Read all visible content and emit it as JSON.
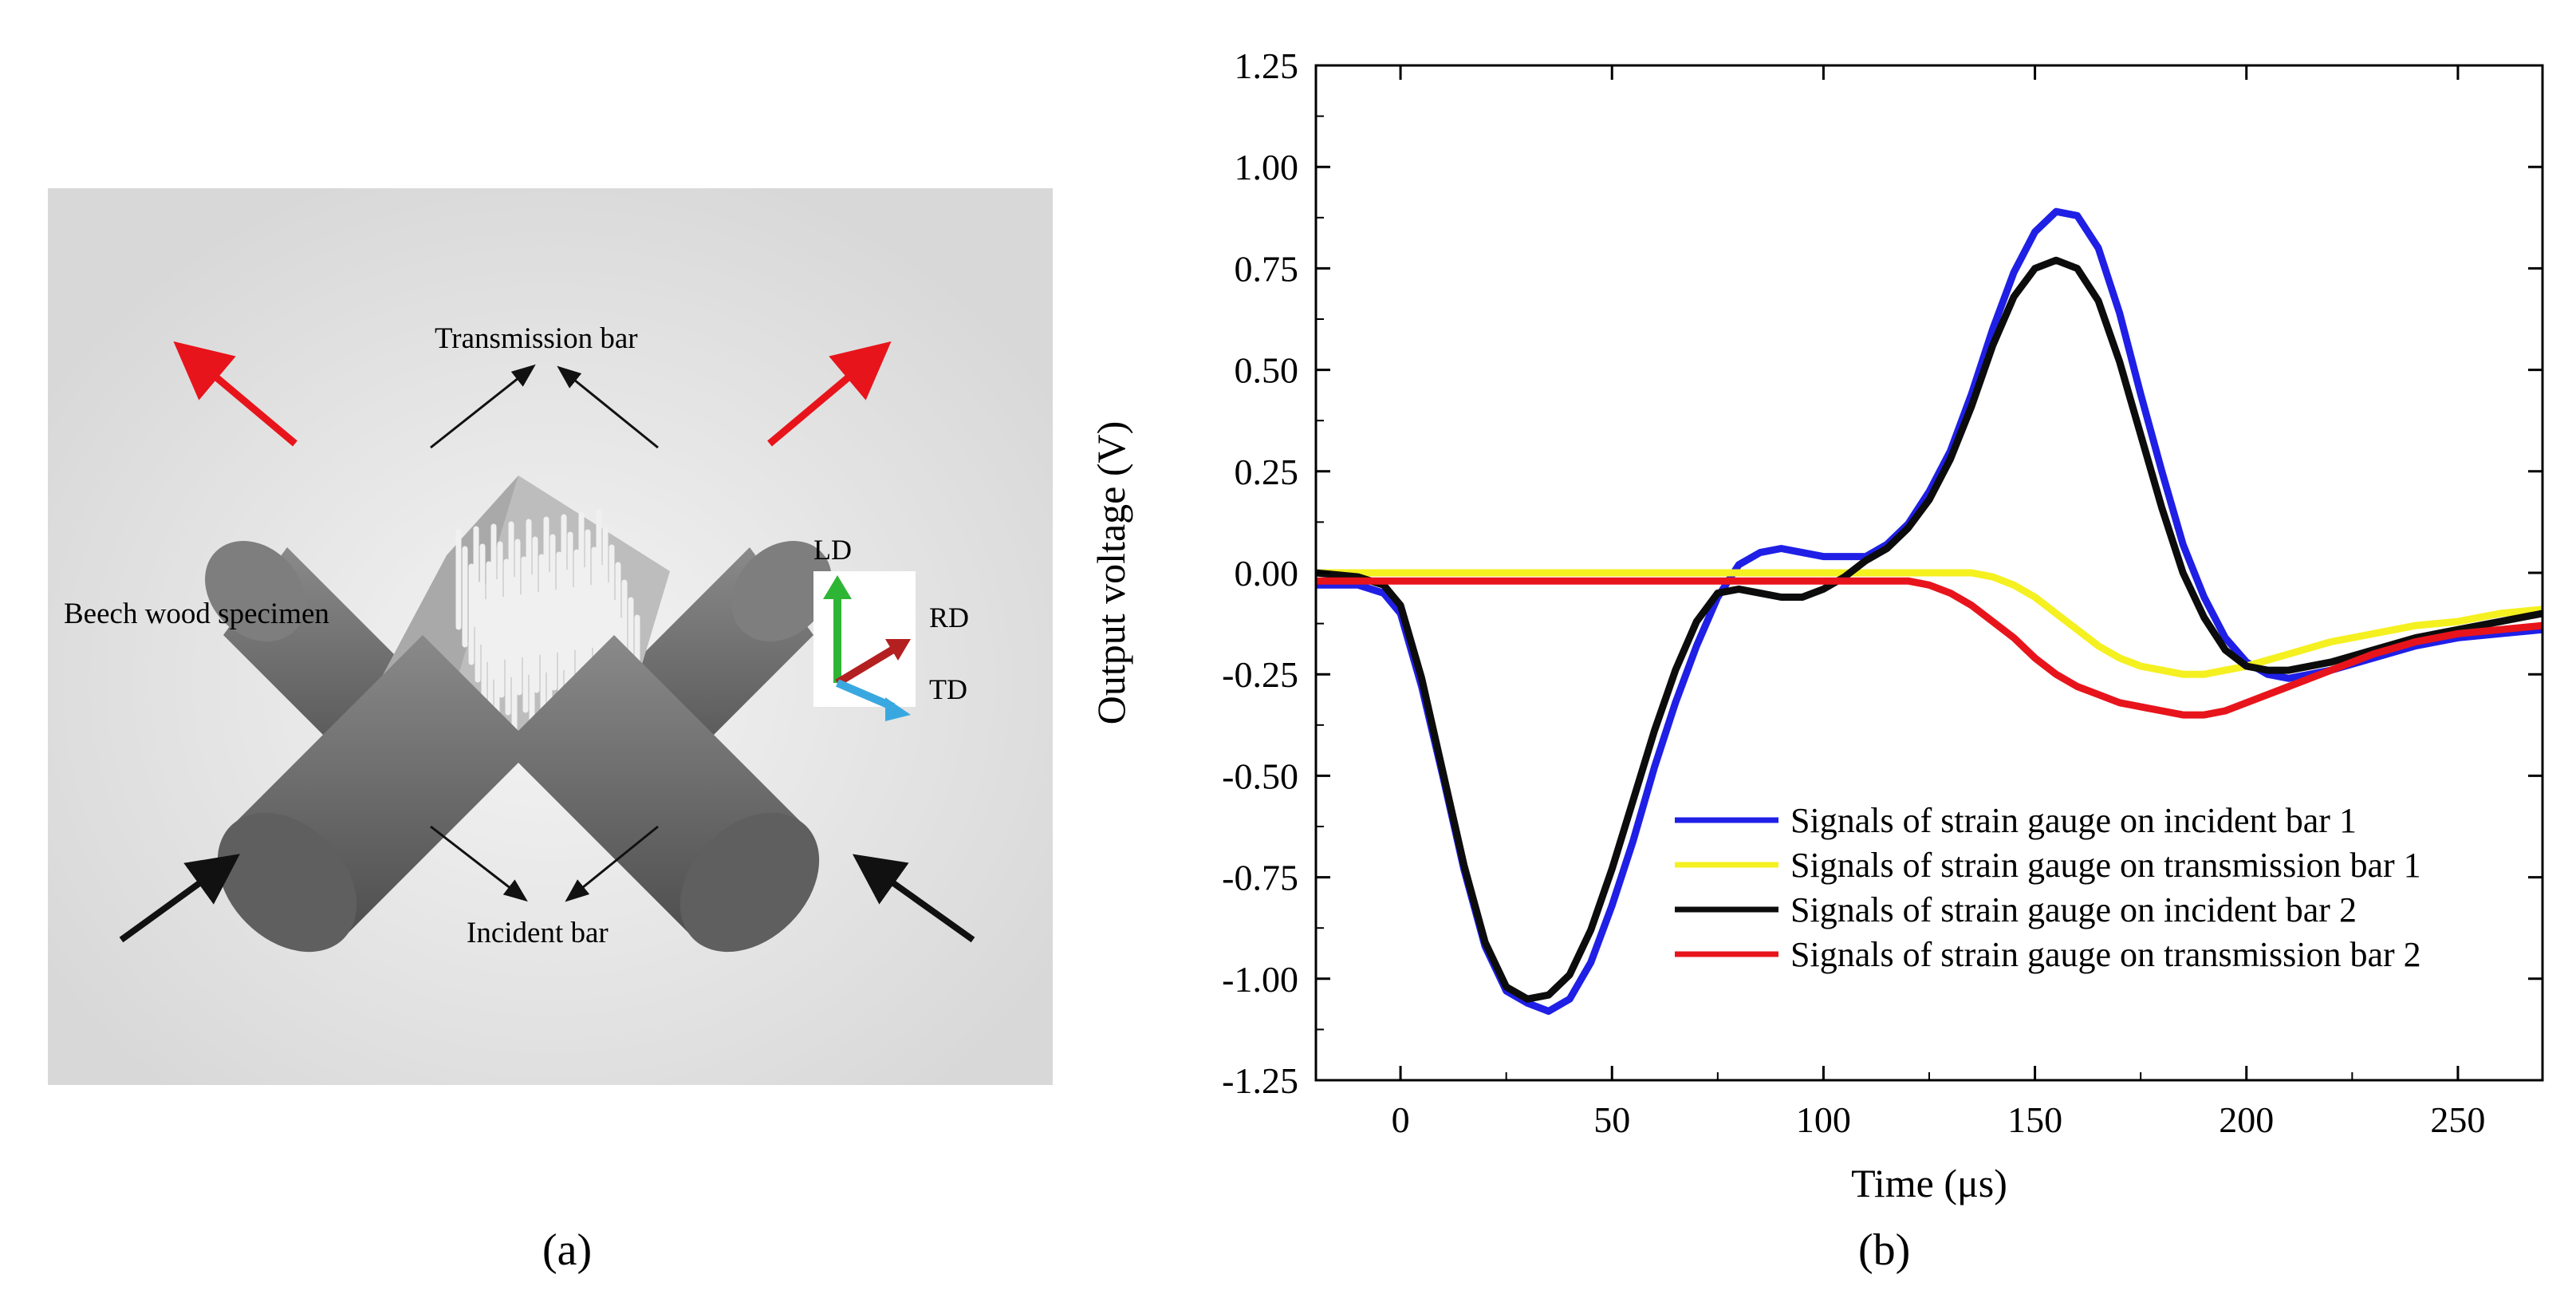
{
  "panel_a": {
    "caption": "(a)",
    "labels": {
      "transmission_bar": "Transmission bar",
      "incident_bar": "Incident bar",
      "specimen": "Beech wood specimen",
      "axis_ld": "LD",
      "axis_rd": "RD",
      "axis_td": "TD"
    },
    "colors": {
      "background": "#e2e2e2",
      "bar": "#6f6f6f",
      "arrow_out": "#e8141b",
      "arrow_in": "#111111",
      "ld": "#2fb536",
      "rd": "#b3201f",
      "td": "#3aa8e0"
    }
  },
  "panel_b": {
    "caption": "(b)"
  },
  "chart_data": {
    "type": "line",
    "xlabel": "Time (μs)",
    "ylabel": "Output voltage (V)",
    "xlim": [
      -20,
      270
    ],
    "ylim": [
      -1.25,
      1.25
    ],
    "xticks": [
      "0",
      "50",
      "100",
      "150",
      "200",
      "250"
    ],
    "yticks": [
      "1.25",
      "1.00",
      "0.75",
      "0.50",
      "0.25",
      "0.00",
      "-0.25",
      "-0.50",
      "-0.75",
      "-1.00",
      "-1.25"
    ],
    "legend_position": "lower-right",
    "grid": false,
    "series": [
      {
        "name": "Signals of strain gauge on incident bar 1",
        "color": "#1f1fe6",
        "points": [
          [
            -20,
            -0.03
          ],
          [
            -10,
            -0.03
          ],
          [
            -4,
            -0.05
          ],
          [
            0,
            -0.1
          ],
          [
            5,
            -0.28
          ],
          [
            10,
            -0.5
          ],
          [
            15,
            -0.73
          ],
          [
            20,
            -0.92
          ],
          [
            25,
            -1.03
          ],
          [
            30,
            -1.06
          ],
          [
            35,
            -1.08
          ],
          [
            40,
            -1.05
          ],
          [
            45,
            -0.96
          ],
          [
            50,
            -0.82
          ],
          [
            55,
            -0.66
          ],
          [
            60,
            -0.48
          ],
          [
            65,
            -0.32
          ],
          [
            70,
            -0.18
          ],
          [
            75,
            -0.06
          ],
          [
            80,
            0.02
          ],
          [
            85,
            0.05
          ],
          [
            90,
            0.06
          ],
          [
            95,
            0.05
          ],
          [
            100,
            0.04
          ],
          [
            105,
            0.04
          ],
          [
            110,
            0.04
          ],
          [
            115,
            0.07
          ],
          [
            120,
            0.12
          ],
          [
            125,
            0.2
          ],
          [
            130,
            0.3
          ],
          [
            135,
            0.44
          ],
          [
            140,
            0.6
          ],
          [
            145,
            0.74
          ],
          [
            150,
            0.84
          ],
          [
            155,
            0.89
          ],
          [
            160,
            0.88
          ],
          [
            165,
            0.8
          ],
          [
            170,
            0.64
          ],
          [
            175,
            0.44
          ],
          [
            180,
            0.25
          ],
          [
            185,
            0.07
          ],
          [
            190,
            -0.06
          ],
          [
            195,
            -0.16
          ],
          [
            200,
            -0.22
          ],
          [
            205,
            -0.25
          ],
          [
            210,
            -0.26
          ],
          [
            220,
            -0.24
          ],
          [
            230,
            -0.21
          ],
          [
            240,
            -0.18
          ],
          [
            250,
            -0.16
          ],
          [
            260,
            -0.15
          ],
          [
            270,
            -0.14
          ]
        ]
      },
      {
        "name": "Signals of strain gauge on transmission bar 1",
        "color": "#f5f020",
        "points": [
          [
            -20,
            0.0
          ],
          [
            0,
            0.0
          ],
          [
            50,
            0.0
          ],
          [
            100,
            0.0
          ],
          [
            120,
            0.0
          ],
          [
            130,
            0.0
          ],
          [
            135,
            0.0
          ],
          [
            140,
            -0.01
          ],
          [
            145,
            -0.03
          ],
          [
            150,
            -0.06
          ],
          [
            155,
            -0.1
          ],
          [
            160,
            -0.14
          ],
          [
            165,
            -0.18
          ],
          [
            170,
            -0.21
          ],
          [
            175,
            -0.23
          ],
          [
            180,
            -0.24
          ],
          [
            185,
            -0.25
          ],
          [
            190,
            -0.25
          ],
          [
            195,
            -0.24
          ],
          [
            200,
            -0.23
          ],
          [
            210,
            -0.2
          ],
          [
            220,
            -0.17
          ],
          [
            230,
            -0.15
          ],
          [
            240,
            -0.13
          ],
          [
            250,
            -0.12
          ],
          [
            260,
            -0.1
          ],
          [
            270,
            -0.09
          ]
        ]
      },
      {
        "name": "Signals of strain gauge on incident bar 2",
        "color": "#0c0c0c",
        "points": [
          [
            -20,
            0.0
          ],
          [
            -10,
            -0.01
          ],
          [
            -4,
            -0.03
          ],
          [
            0,
            -0.08
          ],
          [
            5,
            -0.26
          ],
          [
            10,
            -0.49
          ],
          [
            15,
            -0.72
          ],
          [
            20,
            -0.91
          ],
          [
            25,
            -1.02
          ],
          [
            30,
            -1.05
          ],
          [
            35,
            -1.04
          ],
          [
            40,
            -0.99
          ],
          [
            45,
            -0.88
          ],
          [
            50,
            -0.73
          ],
          [
            55,
            -0.56
          ],
          [
            60,
            -0.39
          ],
          [
            65,
            -0.24
          ],
          [
            70,
            -0.12
          ],
          [
            75,
            -0.05
          ],
          [
            80,
            -0.04
          ],
          [
            85,
            -0.05
          ],
          [
            90,
            -0.06
          ],
          [
            95,
            -0.06
          ],
          [
            100,
            -0.04
          ],
          [
            105,
            -0.01
          ],
          [
            110,
            0.03
          ],
          [
            115,
            0.06
          ],
          [
            120,
            0.11
          ],
          [
            125,
            0.18
          ],
          [
            130,
            0.28
          ],
          [
            135,
            0.41
          ],
          [
            140,
            0.56
          ],
          [
            145,
            0.68
          ],
          [
            150,
            0.75
          ],
          [
            155,
            0.77
          ],
          [
            160,
            0.75
          ],
          [
            165,
            0.67
          ],
          [
            170,
            0.52
          ],
          [
            175,
            0.34
          ],
          [
            180,
            0.16
          ],
          [
            185,
            0.0
          ],
          [
            190,
            -0.11
          ],
          [
            195,
            -0.19
          ],
          [
            200,
            -0.23
          ],
          [
            205,
            -0.24
          ],
          [
            210,
            -0.24
          ],
          [
            220,
            -0.22
          ],
          [
            230,
            -0.19
          ],
          [
            240,
            -0.16
          ],
          [
            250,
            -0.14
          ],
          [
            260,
            -0.12
          ],
          [
            270,
            -0.1
          ]
        ]
      },
      {
        "name": "Signals of strain gauge on transmission bar 2",
        "color": "#e8141b",
        "points": [
          [
            -20,
            -0.02
          ],
          [
            0,
            -0.02
          ],
          [
            50,
            -0.02
          ],
          [
            100,
            -0.02
          ],
          [
            120,
            -0.02
          ],
          [
            125,
            -0.03
          ],
          [
            130,
            -0.05
          ],
          [
            135,
            -0.08
          ],
          [
            140,
            -0.12
          ],
          [
            145,
            -0.16
          ],
          [
            150,
            -0.21
          ],
          [
            155,
            -0.25
          ],
          [
            160,
            -0.28
          ],
          [
            165,
            -0.3
          ],
          [
            170,
            -0.32
          ],
          [
            175,
            -0.33
          ],
          [
            180,
            -0.34
          ],
          [
            185,
            -0.35
          ],
          [
            190,
            -0.35
          ],
          [
            195,
            -0.34
          ],
          [
            200,
            -0.32
          ],
          [
            210,
            -0.28
          ],
          [
            220,
            -0.24
          ],
          [
            230,
            -0.2
          ],
          [
            240,
            -0.17
          ],
          [
            250,
            -0.15
          ],
          [
            260,
            -0.14
          ],
          [
            270,
            -0.13
          ]
        ]
      }
    ]
  }
}
